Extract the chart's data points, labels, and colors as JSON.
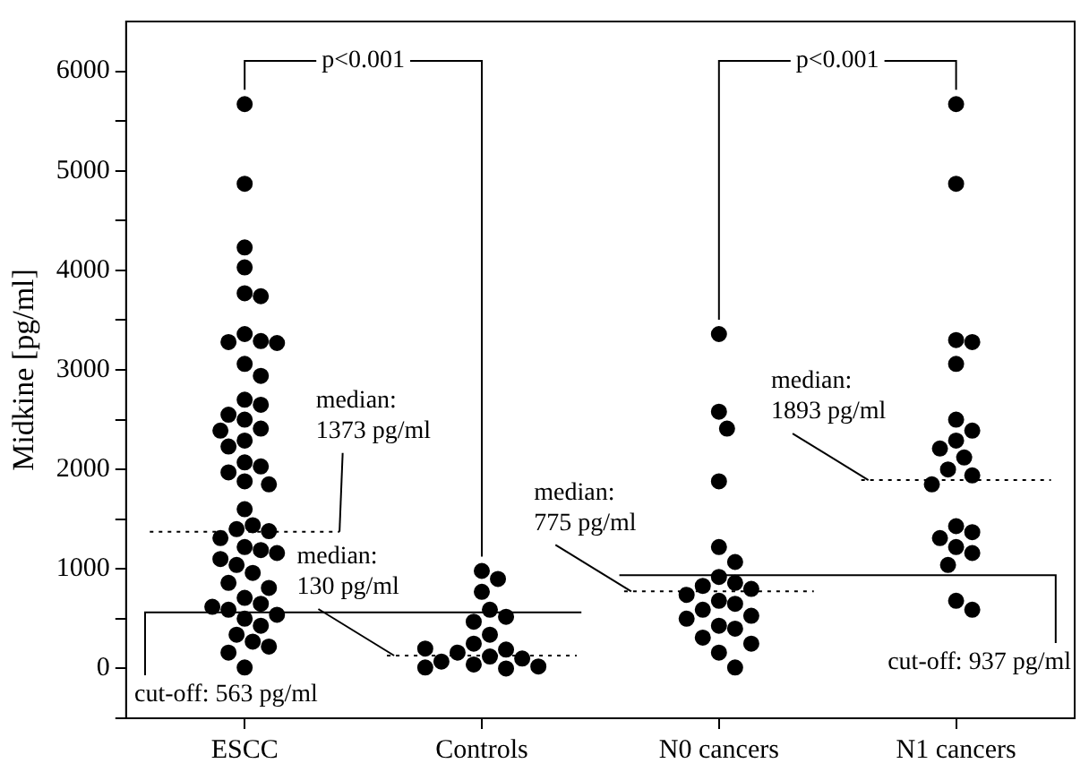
{
  "chart_data": {
    "type": "scatter",
    "ylabel": "Midkine [pg/ml]",
    "categories": [
      "ESCC",
      "Controls",
      "N0 cancers",
      "N1 cancers"
    ],
    "series": [
      {
        "color": "#000000",
        "x": [
          "ESCC",
          "ESCC",
          "ESCC",
          "ESCC",
          "ESCC",
          "ESCC",
          "ESCC",
          "ESCC",
          "ESCC",
          "ESCC",
          "ESCC",
          "ESCC",
          "ESCC",
          "ESCC",
          "ESCC",
          "ESCC",
          "ESCC",
          "ESCC",
          "ESCC",
          "ESCC",
          "ESCC",
          "ESCC",
          "ESCC",
          "ESCC",
          "ESCC",
          "ESCC",
          "ESCC",
          "ESCC",
          "ESCC",
          "ESCC",
          "ESCC",
          "ESCC",
          "ESCC",
          "ESCC",
          "ESCC",
          "ESCC",
          "ESCC",
          "ESCC",
          "ESCC",
          "ESCC",
          "ESCC",
          "ESCC",
          "ESCC",
          "ESCC",
          "ESCC",
          "ESCC",
          "ESCC",
          "ESCC",
          "ESCC",
          "ESCC"
        ],
        "values": [
          5670,
          4870,
          4230,
          4030,
          3770,
          3740,
          3360,
          3290,
          3280,
          3270,
          3060,
          2940,
          2700,
          2650,
          2550,
          2500,
          2410,
          2390,
          2290,
          2230,
          2070,
          2030,
          1970,
          1880,
          1850,
          1600,
          1440,
          1400,
          1380,
          1310,
          1220,
          1190,
          1160,
          1040,
          960,
          860,
          810,
          710,
          650,
          590,
          540,
          500,
          430,
          340,
          270,
          220,
          160,
          10,
          1100,
          620
        ]
      },
      {
        "color": "#000000",
        "x": [
          "Controls",
          "Controls",
          "Controls",
          "Controls",
          "Controls",
          "Controls",
          "Controls",
          "Controls",
          "Controls",
          "Controls",
          "Controls",
          "Controls",
          "Controls",
          "Controls",
          "Controls",
          "Controls",
          "Controls",
          "Controls"
        ],
        "values": [
          980,
          900,
          770,
          590,
          470,
          520,
          340,
          250,
          190,
          160,
          120,
          100,
          70,
          40,
          20,
          10,
          0,
          200
        ]
      },
      {
        "color": "#000000",
        "x": [
          "N0 cancers",
          "N0 cancers",
          "N0 cancers",
          "N0 cancers",
          "N0 cancers",
          "N0 cancers",
          "N0 cancers",
          "N0 cancers",
          "N0 cancers",
          "N0 cancers",
          "N0 cancers",
          "N0 cancers",
          "N0 cancers",
          "N0 cancers",
          "N0 cancers",
          "N0 cancers",
          "N0 cancers",
          "N0 cancers",
          "N0 cancers",
          "N0 cancers",
          "N0 cancers",
          "N0 cancers"
        ],
        "values": [
          3360,
          2580,
          2410,
          1880,
          1220,
          1070,
          920,
          860,
          830,
          800,
          740,
          680,
          650,
          590,
          530,
          500,
          430,
          400,
          310,
          250,
          160,
          10
        ]
      },
      {
        "color": "#000000",
        "x": [
          "N1 cancers",
          "N1 cancers",
          "N1 cancers",
          "N1 cancers",
          "N1 cancers",
          "N1 cancers",
          "N1 cancers",
          "N1 cancers",
          "N1 cancers",
          "N1 cancers",
          "N1 cancers",
          "N1 cancers",
          "N1 cancers",
          "N1 cancers",
          "N1 cancers",
          "N1 cancers",
          "N1 cancers",
          "N1 cancers",
          "N1 cancers",
          "N1 cancers",
          "N1 cancers"
        ],
        "values": [
          5670,
          4870,
          3300,
          3280,
          3060,
          2500,
          2390,
          2290,
          2210,
          2120,
          2000,
          1940,
          1850,
          1430,
          1370,
          1310,
          1220,
          1160,
          1040,
          680,
          590
        ]
      }
    ],
    "ylim": [
      -500,
      6500
    ],
    "yticks": [
      {
        "value": -500,
        "label": null
      },
      0,
      {
        "value": 500,
        "label": null
      },
      1000,
      {
        "value": 1500,
        "label": null
      },
      2000,
      {
        "value": 2500,
        "label": null
      },
      3000,
      {
        "value": 3500,
        "label": null
      },
      4000,
      {
        "value": 4500,
        "label": null
      },
      5000,
      {
        "value": 5500,
        "label": null
      },
      6000
    ],
    "marker": "circle",
    "grid": false,
    "legend": false,
    "annotations": [
      {
        "text": "p<0.001",
        "x": "ESCC",
        "y": 5670
      },
      {
        "text": "p<0.001",
        "x": "N0 cancers",
        "y": 3360
      }
    ],
    "ref_lines": [
      {
        "axis": "y",
        "value": 1373,
        "label": "median:\n1373 pg/ml",
        "line_style": "dotted"
      },
      {
        "axis": "y",
        "value": 130,
        "label": "median:\n130 pg/ml",
        "line_style": "dotted"
      },
      {
        "axis": "y",
        "value": 775,
        "label": "median:\n775 pg/ml",
        "line_style": "dotted"
      },
      {
        "axis": "y",
        "value": 1893,
        "label": "median:\n1893 pg/ml",
        "line_style": "dotted"
      },
      {
        "axis": "y",
        "value": 563,
        "label": "cut-off: 563 pg/ml",
        "line_style": "solid"
      },
      {
        "axis": "y",
        "value": 937,
        "label": "cut-off: 937 pg/ml",
        "line_style": "solid"
      }
    ]
  }
}
